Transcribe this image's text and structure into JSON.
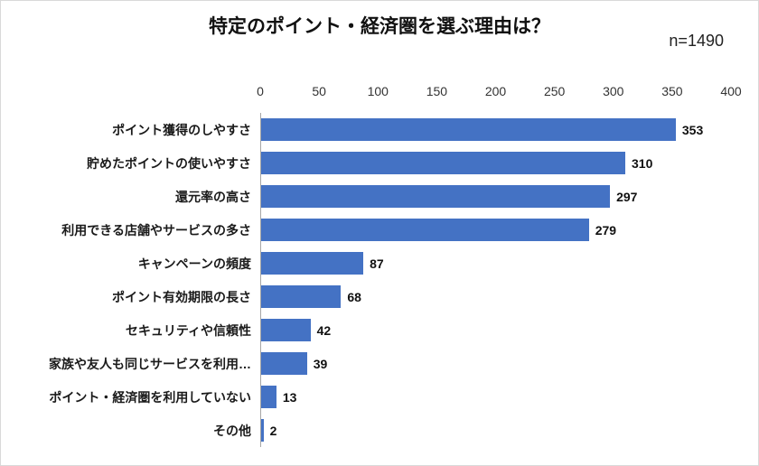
{
  "header": {
    "title": "特定のポイント・経済圏を選ぶ理由は？",
    "sample_size": "n=1490"
  },
  "chart_data": {
    "type": "bar",
    "orientation": "horizontal",
    "title": "特定のポイント・経済圏を選ぶ理由は？",
    "annotation": "n=1490",
    "categories": [
      "ポイント獲得のしやすさ",
      "貯めたポイントの使いやすさ",
      "還元率の高さ",
      "利用できる店舗やサービスの多さ",
      "キャンペーンの頻度",
      "ポイント有効期限の長さ",
      "セキュリティや信頼性",
      "家族や友人も同じサービスを利用…",
      "ポイント・経済圏を利用していない",
      "その他"
    ],
    "values": [
      353,
      310,
      297,
      279,
      87,
      68,
      42,
      39,
      13,
      2
    ],
    "xlim": [
      0,
      400
    ],
    "xticks": [
      0,
      50,
      100,
      150,
      200,
      250,
      300,
      350,
      400
    ],
    "bar_color": "#4472C4",
    "value_labels": true,
    "axis_position": "top",
    "grid": false,
    "legend": "none"
  }
}
